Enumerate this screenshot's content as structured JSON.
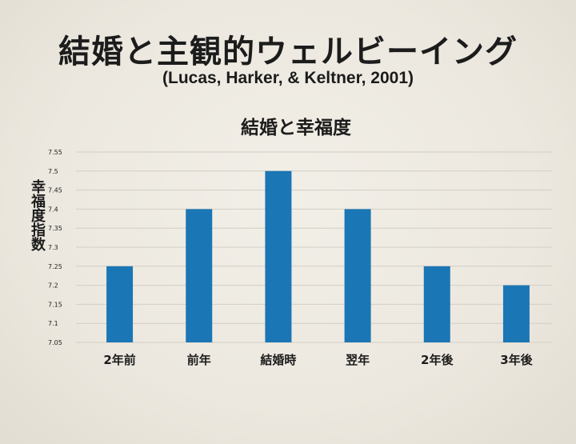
{
  "slide": {
    "title": "結婚と主観的ウェルビーイング",
    "citation": "(Lucas, Harker, & Keltner, 2001)"
  },
  "chart_data": {
    "type": "bar",
    "title": "結婚と幸福度",
    "xlabel": "",
    "ylabel": "幸福度指数",
    "categories": [
      "2年前",
      "前年",
      "結婚時",
      "翌年",
      "2年後",
      "3年後"
    ],
    "values": [
      7.25,
      7.4,
      7.5,
      7.4,
      7.25,
      7.2
    ],
    "ylim": [
      7.05,
      7.55
    ],
    "yticks": [
      "7.55",
      "7.5",
      "7.45",
      "7.4",
      "7.35",
      "7.3",
      "7.25",
      "7.2",
      "7.15",
      "7.1",
      "7.05"
    ],
    "grid": true,
    "legend": "none",
    "bar_color": "#1a76b5",
    "grid_color": "#d2cec4"
  }
}
